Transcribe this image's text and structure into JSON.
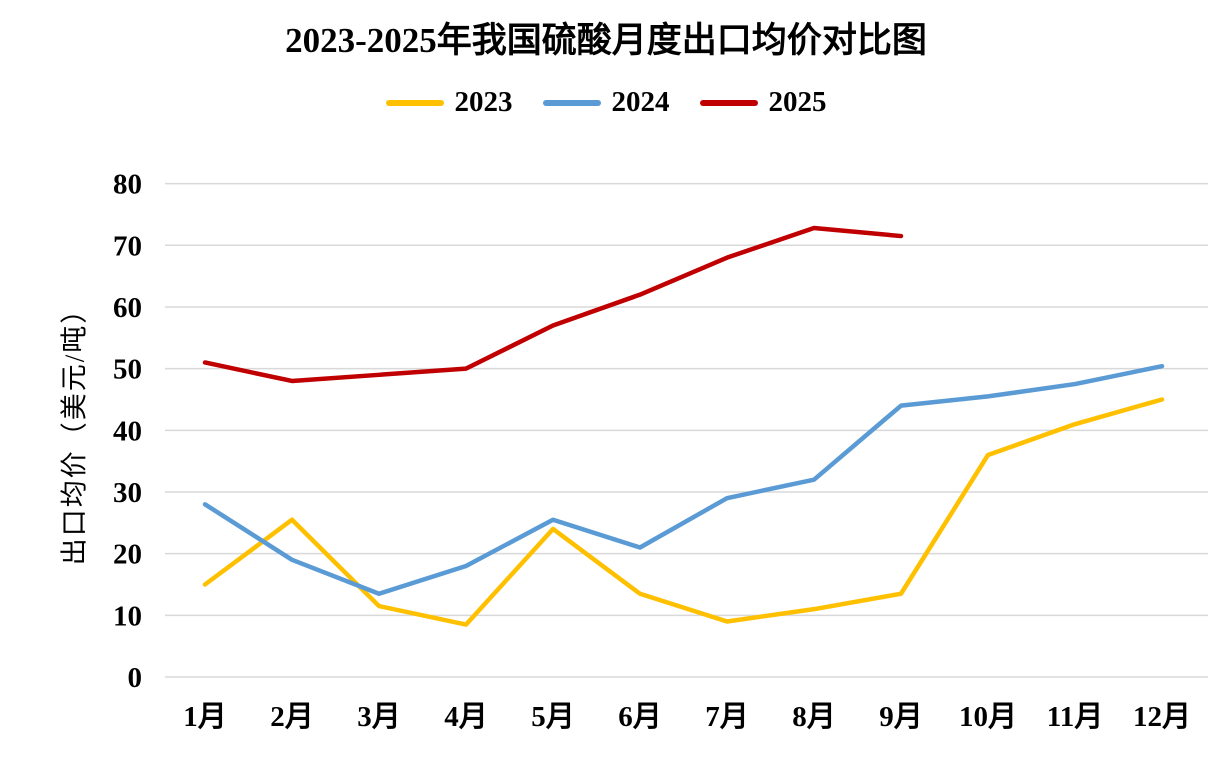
{
  "chart_data": {
    "type": "line",
    "title": "2023-2025年我国硫酸月度出口均价对比图",
    "ylabel": "出口均价（美元/吨）",
    "xlabel": "",
    "categories": [
      "1月",
      "2月",
      "3月",
      "4月",
      "5月",
      "6月",
      "7月",
      "8月",
      "9月",
      "10月",
      "11月",
      "12月"
    ],
    "series": [
      {
        "name": "2023",
        "color": "#FFC000",
        "values": [
          15,
          25.5,
          11.5,
          8.5,
          24,
          13.5,
          9,
          11,
          13.5,
          36,
          41,
          45
        ]
      },
      {
        "name": "2024",
        "color": "#5B9BD5",
        "values": [
          28,
          19,
          13.5,
          18,
          25.5,
          21,
          29,
          32,
          44,
          45.5,
          47.5,
          50.4
        ]
      },
      {
        "name": "2025",
        "color": "#C00000",
        "values": [
          51,
          48,
          49,
          50,
          57,
          62,
          68,
          72.8,
          71.5
        ]
      }
    ],
    "ylim": [
      0,
      80
    ],
    "ytick_step": 10,
    "yticks": [
      0,
      10,
      20,
      30,
      40,
      50,
      60,
      70,
      80
    ],
    "grid": "horizontal-only",
    "legend_position": "top",
    "colors": {
      "gridline": "#D9D9D9",
      "text": "#000000",
      "background": "#FFFFFF"
    }
  }
}
